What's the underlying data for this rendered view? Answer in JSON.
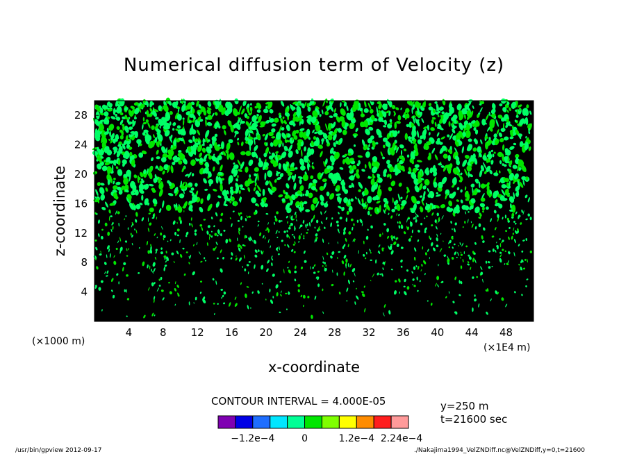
{
  "chart_data": {
    "type": "heatmap",
    "title": "Numerical diffusion term of Velocity (z)",
    "xlabel": "x-coordinate",
    "ylabel": "z-coordinate",
    "x_unit_left": "(×1000 m)",
    "x_unit_right": "(×1E4 m)",
    "xlim": [
      0,
      51.2
    ],
    "ylim": [
      0,
      30
    ],
    "x_ticks": [
      "4",
      "8",
      "12",
      "16",
      "20",
      "24",
      "28",
      "32",
      "36",
      "40",
      "44",
      "48"
    ],
    "x_tick_values": [
      4,
      8,
      12,
      16,
      20,
      24,
      28,
      32,
      36,
      40,
      44,
      48
    ],
    "y_ticks": [
      "4",
      "8",
      "12",
      "16",
      "20",
      "24",
      "28"
    ],
    "y_tick_values": [
      4,
      8,
      12,
      16,
      20,
      24,
      28
    ],
    "contour_interval": "CONTOUR INTERVAL = 4.000E-05",
    "colorbar": {
      "colors": [
        "#7f00b2",
        "#0000e6",
        "#1e6eff",
        "#00e6ff",
        "#00ff96",
        "#00e600",
        "#7fff00",
        "#ffff00",
        "#ff8c00",
        "#ff1e1e",
        "#ff9a9a"
      ],
      "labels": [
        "−1.2e−4",
        "0",
        "1.2e−4",
        "2.24e−4"
      ],
      "label_positions": [
        -0.00012,
        0,
        0.00012,
        0.000224
      ],
      "range": [
        -0.0002,
        0.00024
      ]
    },
    "annotations": {
      "y_position": "y=250 m",
      "time": "t=21600 sec"
    },
    "field_description_colors": {
      "background": "#000000",
      "positive": "#00ff66",
      "strong_positive": "#00e600"
    }
  },
  "footer": {
    "left": "/usr/bin/gpview   2012-09-17",
    "right": "./Nakajima1994_VelZNDiff.nc@VelZNDiff,y=0,t=21600"
  }
}
